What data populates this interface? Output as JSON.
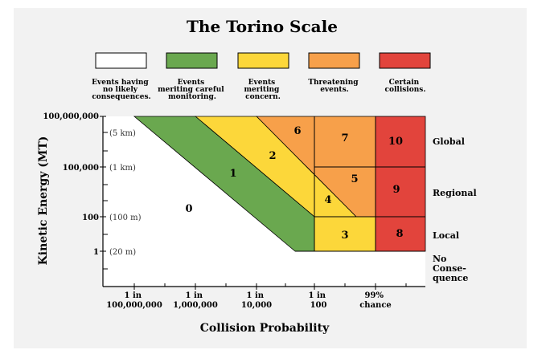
{
  "title": "The Torino Scale",
  "colors": {
    "white": "#ffffff",
    "green": "#6aa84f",
    "yellow": "#fcd73a",
    "orange": "#f7a04a",
    "red": "#e2443c",
    "panel": "#f2f2f2",
    "line": "#000000"
  },
  "legend": [
    {
      "color": "#ffffff",
      "lines": [
        "Events having",
        "no likely",
        "consequences."
      ]
    },
    {
      "color": "#6aa84f",
      "lines": [
        "Events",
        "meriting careful",
        "monitoring."
      ]
    },
    {
      "color": "#fcd73a",
      "lines": [
        "Events",
        "meriting",
        "concern."
      ]
    },
    {
      "color": "#f7a04a",
      "lines": [
        "Threatening",
        "events."
      ]
    },
    {
      "color": "#e2443c",
      "lines": [
        "Certain",
        "collisions."
      ]
    }
  ],
  "y_axis": {
    "label": "Kinetic Energy (MT)",
    "ticks": [
      "100,000,000",
      "100,000",
      "100",
      "1"
    ],
    "sizes": [
      "(5 km)",
      "(1 km)",
      "(100 m)",
      "(20 m)"
    ]
  },
  "x_axis": {
    "label": "Collision Probability",
    "ticks": [
      [
        "1 in",
        "100,000,000"
      ],
      [
        "1 in",
        "1,000,000"
      ],
      [
        "1 in",
        "10,000"
      ],
      [
        "1 in",
        "100"
      ],
      [
        "99%",
        "chance"
      ]
    ]
  },
  "levels": [
    "0",
    "1",
    "2",
    "3",
    "4",
    "5",
    "6",
    "7",
    "8",
    "9",
    "10"
  ],
  "regions": [
    [
      "Global"
    ],
    [
      "Regional"
    ],
    [
      "Local"
    ],
    [
      "No",
      "Conse-",
      "quence"
    ]
  ]
}
